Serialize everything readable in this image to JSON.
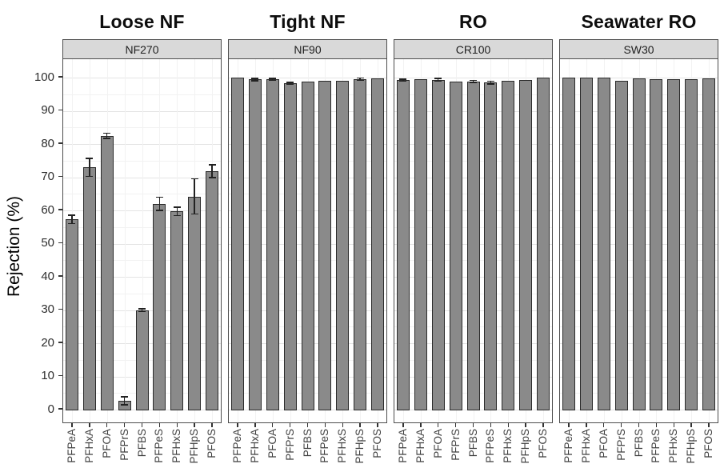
{
  "figure_title": "",
  "colors": {
    "bar_fill": "#8a8a8a",
    "bar_stroke": "#2b2b2b",
    "strip_background": "#d9d9d9",
    "panel_border": "#4d4d4d",
    "grid_major": "#e4e4e4",
    "grid_minor": "#f2f2f2",
    "error_bar": "#222222"
  },
  "chart_data": {
    "type": "bar",
    "title": "",
    "xlabel": "",
    "ylabel": "Rejection (%)",
    "ylim": [
      0,
      100
    ],
    "yticks": [
      0,
      10,
      20,
      30,
      40,
      50,
      60,
      70,
      80,
      90,
      100
    ],
    "grid": true,
    "legend": false,
    "categories": [
      "PFPeA",
      "PFHxA",
      "PFOA",
      "PFPrS",
      "PFBS",
      "PFPeS",
      "PFHxS",
      "PFHpS",
      "PFOS"
    ],
    "facets": [
      {
        "title": "Loose NF",
        "strip": "NF270",
        "values": [
          57.3,
          73.0,
          82.5,
          2.7,
          30.0,
          62.0,
          59.7,
          64.2,
          71.8
        ],
        "errors": [
          1.3,
          2.7,
          0.8,
          1.2,
          0.4,
          2.0,
          1.3,
          5.3,
          1.9
        ]
      },
      {
        "title": "Tight NF",
        "strip": "NF90",
        "values": [
          99.9,
          99.4,
          99.5,
          98.3,
          98.9,
          99.0,
          99.1,
          99.5,
          99.7
        ],
        "errors": [
          0.1,
          0.4,
          0.3,
          0.3,
          0.1,
          0.1,
          0.1,
          0.4,
          0.1
        ]
      },
      {
        "title": "RO",
        "strip": "CR100",
        "values": [
          99.2,
          99.4,
          99.3,
          98.7,
          98.9,
          98.5,
          99.1,
          99.2,
          99.9
        ],
        "errors": [
          0.3,
          0.2,
          0.4,
          0.2,
          0.3,
          0.4,
          0.1,
          0.1,
          0.1
        ]
      },
      {
        "title": "Seawater RO",
        "strip": "SW30",
        "values": [
          99.9,
          99.9,
          100.0,
          99.0,
          99.7,
          99.6,
          99.4,
          99.5,
          99.8
        ],
        "errors": [
          0.1,
          0.1,
          0.1,
          0.1,
          0.1,
          0.1,
          0.1,
          0.1,
          0.1
        ]
      }
    ]
  }
}
